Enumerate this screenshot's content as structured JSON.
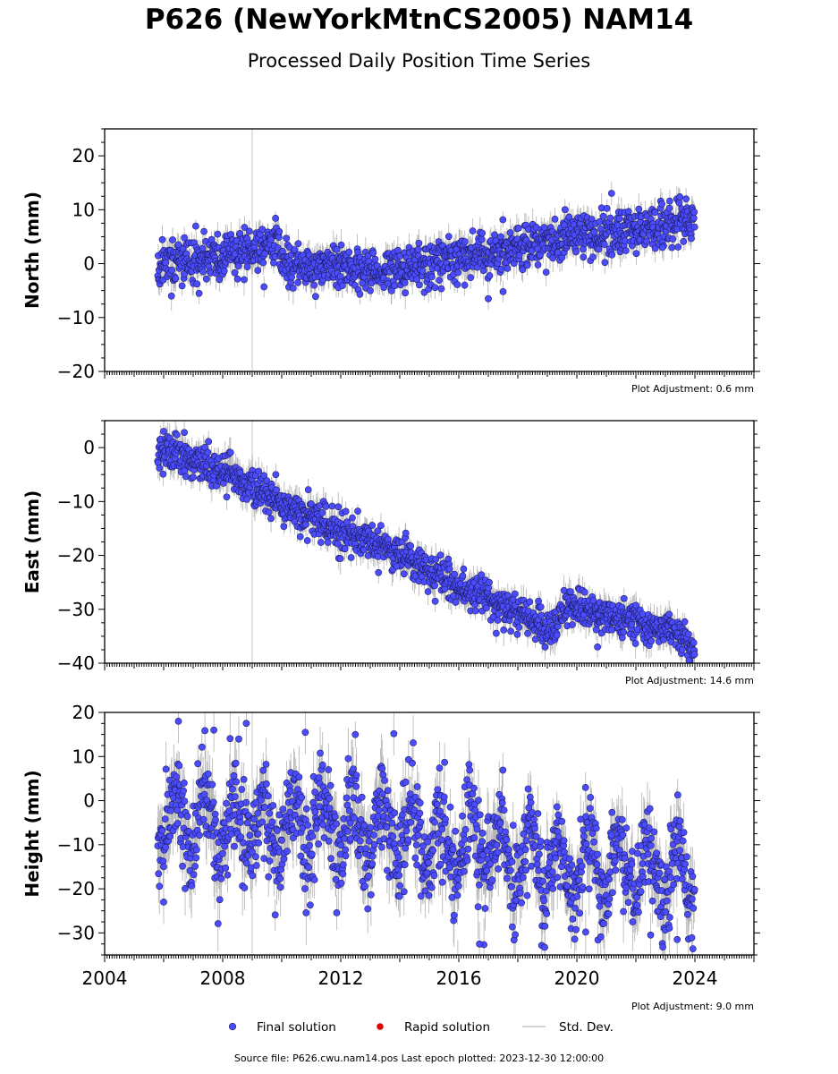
{
  "title": "P626 (NewYorkMtnCS2005) NAM14",
  "subtitle": "Processed Daily Position Time Series",
  "source_note": "Source file: P626.cwu.nam14.pos  Last epoch plotted: 2023-12-30 12:00:00",
  "legend": [
    {
      "label": "Final solution",
      "color": "#4c4cff",
      "marker": "circle"
    },
    {
      "label": "Rapid solution",
      "color": "#dd0000",
      "marker": "dot"
    },
    {
      "label": "Std. Dev.",
      "color": "#c8c8c8",
      "marker": "line"
    }
  ],
  "colors": {
    "final": "#4c4cff",
    "rapid": "#dd0000",
    "stddev": "#bdbdbd",
    "vline": "#d0d0d0"
  },
  "chart_data": [
    {
      "type": "scatter",
      "ylabel": "North (mm)",
      "adjustment": "Plot Adjustment: 0.6 mm",
      "xlim": [
        2004,
        2026
      ],
      "ylim": [
        -20,
        25
      ],
      "yticks": [
        -20,
        -10,
        0,
        10,
        20
      ],
      "xticks": [
        2004,
        2008,
        2012,
        2016,
        2020,
        2024
      ],
      "show_xtick_labels": false,
      "event_lines": [
        2009.0
      ],
      "x_range": [
        2005.8,
        2023.99
      ],
      "trend": [
        [
          2005.8,
          -0.5
        ],
        [
          2009.0,
          2.5
        ],
        [
          2009.9,
          4.0
        ],
        [
          2010.0,
          -0.5
        ],
        [
          2012.0,
          -1.0
        ],
        [
          2014.0,
          -1.0
        ],
        [
          2016.0,
          1.0
        ],
        [
          2018.0,
          3.0
        ],
        [
          2020.0,
          5.0
        ],
        [
          2022.0,
          6.5
        ],
        [
          2023.99,
          8.5
        ]
      ],
      "scatter": 2.0,
      "sigma": 2.0,
      "outliers": [
        [
          2006.5,
          3.5
        ],
        [
          2006.7,
          4.8
        ],
        [
          2007.2,
          -5.5
        ],
        [
          2008.9,
          6.0
        ],
        [
          2009.4,
          -4.3
        ],
        [
          2011.1,
          -4.0
        ],
        [
          2013.0,
          -5.0
        ],
        [
          2016.2,
          -4.0
        ],
        [
          2017.0,
          -6.5
        ],
        [
          2017.5,
          -5.2
        ],
        [
          2019.6,
          10.0
        ],
        [
          2022.9,
          3.0
        ],
        [
          2023.7,
          12.0
        ]
      ],
      "n_points": 1300,
      "seed": 11
    },
    {
      "type": "scatter",
      "ylabel": "East (mm)",
      "adjustment": "Plot Adjustment: 14.6 mm",
      "xlim": [
        2004,
        2026
      ],
      "ylim": [
        -40,
        5
      ],
      "yticks": [
        -40,
        -30,
        -20,
        -10,
        0
      ],
      "xticks": [
        2004,
        2008,
        2012,
        2016,
        2020,
        2024
      ],
      "show_xtick_labels": false,
      "event_lines": [
        2009.0
      ],
      "x_range": [
        2005.8,
        2023.99
      ],
      "trend": [
        [
          2005.8,
          0.0
        ],
        [
          2008.0,
          -4.5
        ],
        [
          2010.0,
          -10.5
        ],
        [
          2012.0,
          -15.5
        ],
        [
          2014.0,
          -20.0
        ],
        [
          2016.0,
          -25.5
        ],
        [
          2018.0,
          -31.0
        ],
        [
          2019.3,
          -34.5
        ],
        [
          2019.45,
          -30.0
        ],
        [
          2020.0,
          -29.0
        ],
        [
          2021.0,
          -31.0
        ],
        [
          2022.0,
          -32.5
        ],
        [
          2023.5,
          -34.5
        ],
        [
          2023.99,
          -37.5
        ]
      ],
      "scatter": 1.6,
      "sigma": 2.0,
      "outliers": [
        [
          2006.0,
          3.0
        ],
        [
          2006.7,
          2.8
        ],
        [
          2007.0,
          -5.5
        ],
        [
          2009.8,
          -5.0
        ],
        [
          2010.9,
          -7.8
        ],
        [
          2013.9,
          -22.0
        ],
        [
          2015.2,
          -28.5
        ],
        [
          2018.7,
          -28.5
        ],
        [
          2020.7,
          -37.0
        ],
        [
          2021.6,
          -28.0
        ],
        [
          2023.8,
          -39.5
        ]
      ],
      "n_points": 1300,
      "seed": 23
    },
    {
      "type": "scatter",
      "ylabel": "Height (mm)",
      "adjustment": "Plot Adjustment: 9.0 mm",
      "xlim": [
        2004,
        2026
      ],
      "ylim": [
        -35,
        20
      ],
      "yticks": [
        -30,
        -20,
        -10,
        0,
        10,
        20
      ],
      "xticks": [
        2004,
        2008,
        2012,
        2016,
        2020,
        2024
      ],
      "show_xtick_labels": true,
      "event_lines": [
        2009.0
      ],
      "x_range": [
        2005.8,
        2023.99
      ],
      "trend": [
        [
          2005.8,
          -5.0
        ],
        [
          2010.0,
          -5.5
        ],
        [
          2014.0,
          -7.0
        ],
        [
          2016.0,
          -10.0
        ],
        [
          2018.0,
          -13.0
        ],
        [
          2020.0,
          -15.0
        ],
        [
          2022.0,
          -16.0
        ],
        [
          2023.99,
          -17.0
        ]
      ],
      "seasonal": 7.0,
      "scatter": 5.5,
      "sigma": 5.0,
      "outliers": [
        [
          2006.5,
          18.0
        ],
        [
          2007.7,
          16.0
        ],
        [
          2008.8,
          17.5
        ],
        [
          2010.8,
          15.5
        ],
        [
          2013.8,
          15.2
        ],
        [
          2016.7,
          -32.5
        ],
        [
          2020.3,
          -29.8
        ],
        [
          2022.5,
          -30.5
        ],
        [
          2023.4,
          -31.5
        ],
        [
          2006.0,
          -23.0
        ]
      ],
      "n_points": 1300,
      "seed": 37
    }
  ]
}
